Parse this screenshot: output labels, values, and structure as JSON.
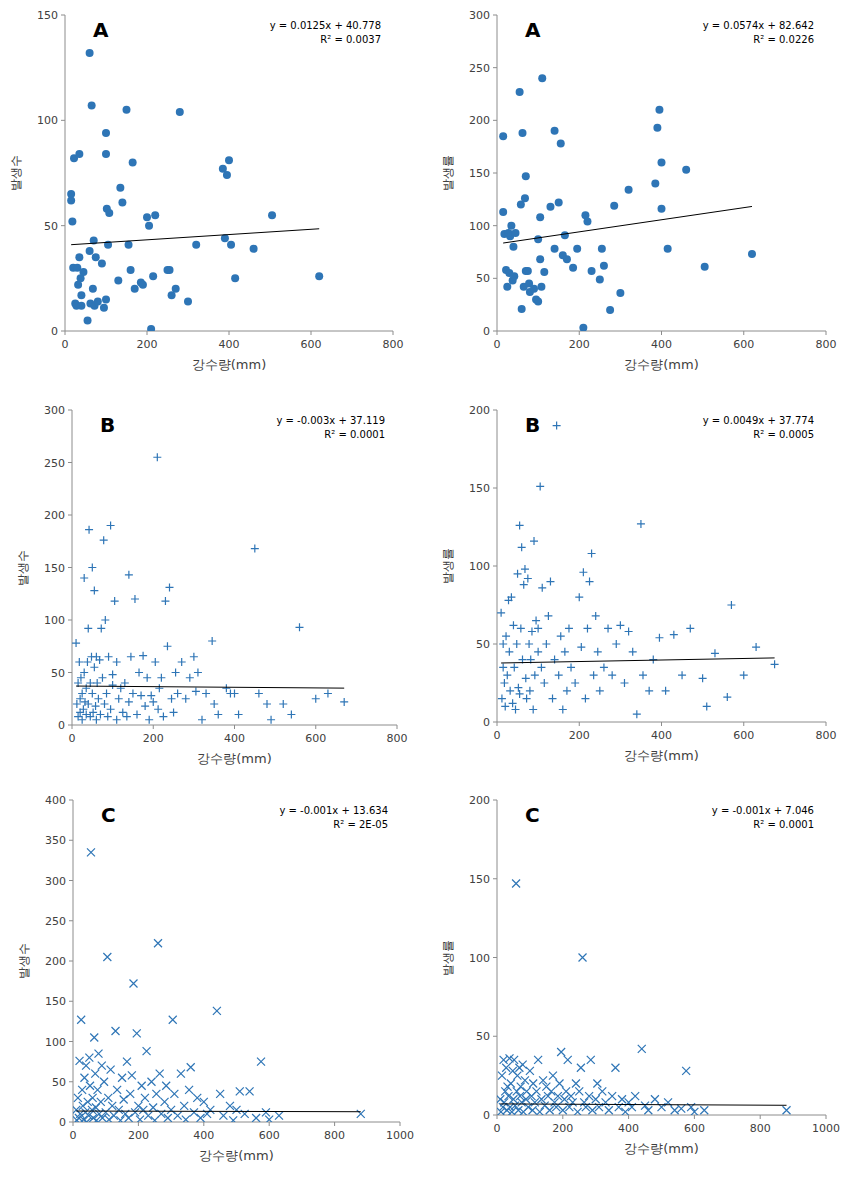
{
  "chart_data": [
    {
      "type": "scatter",
      "title": "A",
      "x_label": "강수량(mm)",
      "y_label": "발생수",
      "annotations": [
        "y = 0.0125x + 40.778",
        "R² = 0.0037"
      ],
      "trendline": {
        "slope": 0.0125,
        "intercept": 40.778
      },
      "color": "#2e75b6",
      "marker": "circle",
      "xlim": [
        0,
        800
      ],
      "ylim": [
        0,
        150
      ],
      "xticks": [
        0,
        200,
        400,
        600,
        800
      ],
      "yticks": [
        0,
        50,
        100,
        150
      ],
      "x": [
        15,
        15,
        18,
        20,
        22,
        25,
        28,
        30,
        32,
        35,
        35,
        38,
        40,
        40,
        45,
        55,
        60,
        60,
        62,
        65,
        68,
        70,
        72,
        75,
        80,
        90,
        95,
        100,
        100,
        100,
        102,
        105,
        108,
        130,
        135,
        140,
        150,
        155,
        160,
        165,
        170,
        185,
        190,
        200,
        205,
        210,
        215,
        220,
        250,
        255,
        260,
        270,
        280,
        300,
        320,
        385,
        390,
        395,
        400,
        405,
        415,
        460,
        505,
        620
      ],
      "values": [
        62,
        65,
        52,
        30,
        82,
        13,
        12,
        30,
        22,
        84,
        35,
        25,
        17,
        12,
        28,
        5,
        132,
        38,
        13,
        107,
        20,
        43,
        12,
        35,
        14,
        32,
        11,
        84,
        94,
        15,
        58,
        41,
        56,
        24,
        68,
        61,
        105,
        41,
        29,
        80,
        20,
        23,
        22,
        54,
        50,
        1,
        26,
        55,
        29,
        29,
        17,
        20,
        104,
        14,
        41,
        77,
        44,
        74,
        81,
        41,
        25,
        39,
        55,
        26
      ]
    },
    {
      "type": "scatter",
      "title": "A",
      "x_label": "강수량(mm)",
      "y_label": "발생률",
      "annotations": [
        "y = 0.0574x + 82.642",
        "R² = 0.0226"
      ],
      "trendline": {
        "slope": 0.0574,
        "intercept": 82.642
      },
      "color": "#2e75b6",
      "marker": "circle",
      "xlim": [
        0,
        800
      ],
      "ylim": [
        0,
        300
      ],
      "xticks": [
        0,
        200,
        400,
        600,
        800
      ],
      "yticks": [
        0,
        50,
        100,
        150,
        200,
        250,
        300
      ],
      "x": [
        15,
        15,
        18,
        22,
        25,
        28,
        30,
        32,
        35,
        38,
        40,
        42,
        45,
        55,
        58,
        60,
        62,
        65,
        68,
        70,
        70,
        75,
        78,
        80,
        90,
        95,
        100,
        100,
        105,
        105,
        108,
        110,
        115,
        130,
        140,
        140,
        150,
        155,
        160,
        165,
        170,
        185,
        195,
        210,
        215,
        220,
        230,
        250,
        255,
        260,
        275,
        285,
        300,
        320,
        385,
        390,
        395,
        400,
        400,
        415,
        460,
        505,
        620
      ],
      "values": [
        185,
        113,
        92,
        58,
        42,
        93,
        55,
        90,
        100,
        48,
        80,
        52,
        93,
        227,
        120,
        21,
        188,
        42,
        126,
        57,
        147,
        57,
        45,
        37,
        40,
        30,
        28,
        87,
        108,
        68,
        42,
        240,
        56,
        118,
        190,
        78,
        122,
        178,
        72,
        91,
        68,
        60,
        78,
        3,
        110,
        104,
        57,
        49,
        78,
        62,
        20,
        119,
        36,
        134,
        140,
        193,
        210,
        160,
        116,
        78,
        153,
        61,
        73
      ]
    },
    {
      "type": "scatter",
      "title": "B",
      "x_label": "강수량(mm)",
      "y_label": "발생수",
      "annotations": [
        "y = -0.003x + 37.119",
        "R² = 0.0001"
      ],
      "trendline": {
        "slope": -0.003,
        "intercept": 37.119
      },
      "color": "#2e75b6",
      "marker": "plus",
      "xlim": [
        0,
        800
      ],
      "ylim": [
        0,
        300
      ],
      "xticks": [
        0,
        200,
        400,
        600,
        800
      ],
      "yticks": [
        0,
        50,
        100,
        150,
        200,
        250,
        300
      ],
      "x": [
        10,
        12,
        15,
        15,
        18,
        20,
        20,
        22,
        25,
        25,
        28,
        30,
        30,
        32,
        35,
        35,
        38,
        40,
        40,
        42,
        45,
        45,
        48,
        50,
        50,
        52,
        55,
        55,
        58,
        60,
        60,
        62,
        65,
        68,
        70,
        72,
        75,
        78,
        80,
        82,
        85,
        88,
        90,
        95,
        95,
        100,
        100,
        105,
        110,
        110,
        115,
        120,
        125,
        130,
        135,
        140,
        140,
        145,
        150,
        155,
        160,
        165,
        170,
        175,
        180,
        185,
        190,
        195,
        200,
        205,
        210,
        212,
        215,
        220,
        225,
        230,
        235,
        240,
        245,
        250,
        255,
        260,
        270,
        280,
        290,
        300,
        305,
        310,
        320,
        330,
        345,
        350,
        360,
        380,
        390,
        400,
        410,
        450,
        460,
        480,
        490,
        520,
        540,
        560,
        600,
        630,
        670
      ],
      "values": [
        78,
        20,
        40,
        8,
        60,
        25,
        12,
        45,
        30,
        5,
        15,
        140,
        50,
        22,
        10,
        35,
        60,
        20,
        92,
        186,
        8,
        40,
        65,
        150,
        30,
        12,
        128,
        55,
        18,
        65,
        5,
        40,
        25,
        62,
        10,
        92,
        45,
        176,
        20,
        100,
        30,
        8,
        65,
        190,
        15,
        48,
        38,
        118,
        5,
        60,
        25,
        35,
        12,
        40,
        8,
        143,
        22,
        65,
        30,
        120,
        10,
        50,
        28,
        66,
        18,
        45,
        5,
        28,
        22,
        60,
        255,
        15,
        35,
        45,
        8,
        118,
        75,
        131,
        25,
        12,
        50,
        30,
        60,
        25,
        45,
        65,
        32,
        50,
        5,
        30,
        80,
        20,
        10,
        35,
        30,
        30,
        10,
        168,
        30,
        20,
        5,
        20,
        10,
        93,
        25,
        30,
        22
      ]
    },
    {
      "type": "scatter",
      "title": "B",
      "x_label": "강수량(mm)",
      "y_label": "발생률",
      "annotations": [
        "y = 0.0049x + 37.774",
        "R² = 0.0005"
      ],
      "trendline": {
        "slope": 0.0049,
        "intercept": 37.774
      },
      "color": "#2e75b6",
      "marker": "plus",
      "xlim": [
        0,
        800
      ],
      "ylim": [
        0,
        200
      ],
      "xticks": [
        0,
        200,
        400,
        600,
        800
      ],
      "yticks": [
        0,
        50,
        100,
        150,
        200
      ],
      "x": [
        10,
        12,
        15,
        15,
        18,
        20,
        22,
        25,
        28,
        30,
        32,
        35,
        38,
        40,
        42,
        45,
        48,
        50,
        52,
        55,
        55,
        58,
        60,
        62,
        65,
        68,
        70,
        72,
        75,
        78,
        80,
        82,
        85,
        88,
        90,
        92,
        95,
        100,
        100,
        105,
        108,
        110,
        115,
        120,
        125,
        130,
        135,
        140,
        145,
        150,
        155,
        160,
        165,
        170,
        175,
        180,
        190,
        200,
        205,
        210,
        215,
        220,
        225,
        230,
        235,
        240,
        245,
        250,
        260,
        270,
        280,
        290,
        300,
        310,
        320,
        330,
        340,
        350,
        355,
        370,
        380,
        395,
        410,
        430,
        450,
        470,
        500,
        510,
        530,
        560,
        570,
        600,
        630,
        675
      ],
      "values": [
        70,
        15,
        35,
        50,
        25,
        10,
        55,
        30,
        78,
        45,
        20,
        80,
        12,
        62,
        35,
        8,
        50,
        95,
        22,
        126,
        18,
        60,
        112,
        40,
        88,
        98,
        28,
        15,
        92,
        50,
        20,
        40,
        58,
        8,
        116,
        30,
        65,
        45,
        60,
        151,
        35,
        86,
        25,
        50,
        68,
        90,
        15,
        40,
        190,
        30,
        55,
        8,
        45,
        20,
        60,
        35,
        25,
        80,
        48,
        96,
        15,
        60,
        90,
        108,
        30,
        68,
        45,
        20,
        35,
        60,
        30,
        50,
        62,
        25,
        58,
        45,
        5,
        127,
        30,
        20,
        40,
        54,
        20,
        56,
        30,
        60,
        28,
        10,
        44,
        16,
        75,
        30,
        48,
        37
      ]
    },
    {
      "type": "scatter",
      "title": "C",
      "x_label": "강수량(mm)",
      "y_label": "발생수",
      "annotations": [
        "y = -0.001x + 13.634",
        "R² = 2E-05"
      ],
      "trendline": {
        "slope": -0.001,
        "intercept": 13.634
      },
      "color": "#2e75b6",
      "marker": "x",
      "xlim": [
        0,
        1000
      ],
      "ylim": [
        0,
        400
      ],
      "xticks": [
        0,
        200,
        400,
        600,
        800,
        1000
      ],
      "yticks": [
        0,
        50,
        100,
        150,
        200,
        250,
        300,
        350,
        400
      ],
      "x": [
        10,
        12,
        15,
        18,
        20,
        22,
        25,
        28,
        30,
        32,
        35,
        38,
        40,
        42,
        45,
        48,
        50,
        52,
        55,
        58,
        60,
        62,
        65,
        68,
        70,
        72,
        75,
        78,
        80,
        85,
        88,
        90,
        95,
        100,
        105,
        108,
        110,
        115,
        120,
        125,
        130,
        135,
        140,
        145,
        150,
        155,
        160,
        165,
        170,
        175,
        180,
        185,
        190,
        195,
        200,
        205,
        210,
        215,
        220,
        225,
        230,
        240,
        245,
        250,
        255,
        260,
        265,
        270,
        280,
        285,
        290,
        300,
        305,
        310,
        320,
        330,
        340,
        345,
        355,
        360,
        370,
        380,
        390,
        400,
        410,
        420,
        440,
        450,
        460,
        480,
        490,
        500,
        510,
        525,
        540,
        560,
        575,
        590,
        600,
        630,
        880
      ],
      "values": [
        15,
        2,
        30,
        5,
        76,
        10,
        127,
        40,
        20,
        3,
        55,
        12,
        70,
        0,
        25,
        8,
        80,
        45,
        335,
        15,
        30,
        5,
        105,
        60,
        18,
        2,
        40,
        85,
        10,
        25,
        70,
        5,
        50,
        12,
        205,
        30,
        3,
        65,
        20,
        8,
        113,
        40,
        15,
        2,
        55,
        28,
        10,
        75,
        5,
        35,
        58,
        172,
        12,
        110,
        20,
        3,
        45,
        15,
        30,
        88,
        8,
        50,
        18,
        2,
        35,
        222,
        60,
        10,
        25,
        45,
        5,
        15,
        127,
        35,
        8,
        60,
        20,
        3,
        40,
        68,
        12,
        30,
        5,
        25,
        10,
        15,
        138,
        35,
        8,
        20,
        2,
        15,
        38,
        10,
        38,
        5,
        75,
        12,
        3,
        8,
        10
      ]
    },
    {
      "type": "scatter",
      "title": "C",
      "x_label": "강수량(mm)",
      "y_label": "발생률",
      "annotations": [
        "y = -0.001x + 7.046",
        "R² = 0.0001"
      ],
      "trendline": {
        "slope": -0.001,
        "intercept": 7.046
      },
      "color": "#2e75b6",
      "marker": "x",
      "xlim": [
        0,
        1000
      ],
      "ylim": [
        0,
        200
      ],
      "xticks": [
        0,
        200,
        400,
        600,
        800,
        1000
      ],
      "yticks": [
        0,
        50,
        100,
        150,
        200
      ],
      "x": [
        10,
        12,
        15,
        18,
        20,
        22,
        25,
        28,
        30,
        32,
        35,
        38,
        40,
        42,
        45,
        48,
        50,
        52,
        55,
        58,
        60,
        62,
        65,
        68,
        70,
        72,
        75,
        78,
        80,
        85,
        88,
        90,
        95,
        100,
        105,
        108,
        110,
        115,
        120,
        125,
        130,
        135,
        140,
        145,
        150,
        155,
        160,
        165,
        170,
        175,
        180,
        185,
        190,
        195,
        200,
        205,
        210,
        215,
        220,
        225,
        230,
        240,
        245,
        250,
        255,
        260,
        265,
        270,
        280,
        285,
        290,
        300,
        305,
        310,
        320,
        330,
        340,
        350,
        360,
        370,
        380,
        390,
        400,
        410,
        420,
        440,
        450,
        460,
        480,
        500,
        520,
        540,
        560,
        575,
        590,
        600,
        630,
        880
      ],
      "values": [
        10,
        2,
        25,
        5,
        35,
        8,
        15,
        30,
        3,
        18,
        12,
        36,
        5,
        20,
        2,
        28,
        10,
        35,
        6,
        147,
        15,
        25,
        3,
        30,
        12,
        18,
        8,
        32,
        2,
        22,
        10,
        15,
        5,
        28,
        12,
        3,
        20,
        8,
        15,
        35,
        2,
        10,
        22,
        6,
        18,
        12,
        3,
        15,
        25,
        8,
        5,
        12,
        20,
        40,
        3,
        10,
        15,
        35,
        5,
        12,
        8,
        20,
        2,
        15,
        30,
        100,
        8,
        5,
        12,
        35,
        3,
        10,
        20,
        5,
        15,
        8,
        3,
        12,
        30,
        5,
        10,
        2,
        8,
        5,
        12,
        42,
        6,
        3,
        10,
        5,
        8,
        3,
        4,
        28,
        5,
        2,
        3,
        3
      ]
    }
  ]
}
